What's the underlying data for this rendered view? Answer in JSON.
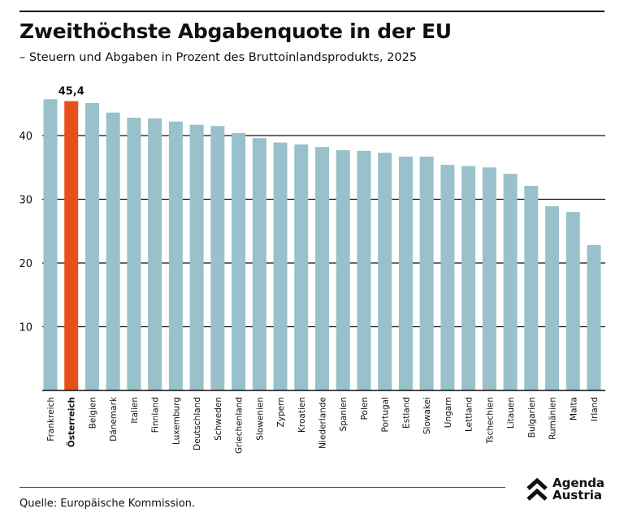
{
  "title": "Zweithöchste Abgabenquote in der EU",
  "subtitle": "– Steuern und Abgaben in Prozent des Bruttoinlandsprodukts, 2025",
  "source": "Quelle: Europäische Kommission.",
  "logo": {
    "line1": "Agenda",
    "line2": "Austria"
  },
  "chart_data": {
    "type": "bar",
    "title": "Zweithöchste Abgabenquote in der EU",
    "xlabel": "",
    "ylabel": "",
    "ylim": [
      0,
      47
    ],
    "yticks": [
      10,
      20,
      30,
      40
    ],
    "grid": true,
    "highlight": "Österreich",
    "highlight_label": "45,4",
    "colors": {
      "bar": "#98c1cb",
      "highlight": "#e8501a",
      "text": "#111111"
    },
    "categories": [
      "Frankreich",
      "Österreich",
      "Belgien",
      "Dänemark",
      "Italien",
      "Finnland",
      "Luxemburg",
      "Deutschland",
      "Schweden",
      "Griechenland",
      "Slowenien",
      "Zypern",
      "Kroatien",
      "Niederlande",
      "Spanien",
      "Polen",
      "Portugal",
      "Estland",
      "Slowakei",
      "Ungarn",
      "Lettland",
      "Tschechien",
      "Litauen",
      "Bulgarien",
      "Rumänien",
      "Malta",
      "Irland"
    ],
    "values": [
      45.7,
      45.4,
      45.1,
      43.6,
      42.8,
      42.7,
      42.2,
      41.7,
      41.5,
      40.4,
      39.6,
      38.9,
      38.6,
      38.2,
      37.7,
      37.6,
      37.3,
      36.7,
      36.7,
      35.4,
      35.2,
      35.0,
      34.0,
      32.1,
      28.9,
      28.0,
      22.8
    ]
  }
}
